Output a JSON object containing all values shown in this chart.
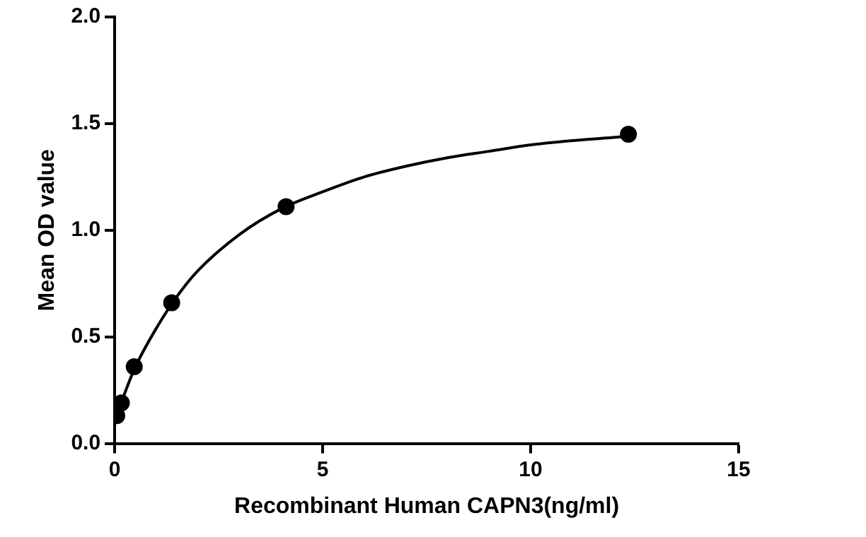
{
  "chart_data": {
    "type": "scatter",
    "xlabel": "Recombinant Human CAPN3(ng/ml)",
    "ylabel": "Mean OD value",
    "xlim": [
      0,
      15
    ],
    "xticks": [
      0,
      5,
      10,
      15
    ],
    "ylim": [
      0,
      2
    ],
    "yticks": [
      {
        "value": 0,
        "label": "0.0"
      },
      {
        "value": 0.5,
        "label": "0.5"
      },
      {
        "value": 1,
        "label": "1.0"
      },
      {
        "value": 1.5,
        "label": "1.5"
      },
      {
        "value": 2,
        "label": "2.0"
      }
    ],
    "grid": false,
    "legend": false,
    "marker": "circle",
    "series": [
      {
        "color": "#000000",
        "x": [
          0.05,
          0.16,
          0.47,
          1.37,
          4.12,
          12.35
        ],
        "values": [
          0.13,
          0.19,
          0.36,
          0.66,
          1.11,
          1.45
        ]
      },
      {
        "type": "line",
        "color": "#000000",
        "line_style": "solid",
        "marker": "none",
        "x": [
          0.05,
          0.25,
          0.5,
          1,
          1.5,
          2,
          3,
          4,
          5,
          6,
          7,
          8,
          9,
          10,
          11,
          12.35
        ],
        "values": [
          0.13,
          0.24,
          0.36,
          0.54,
          0.69,
          0.81,
          0.98,
          1.1,
          1.18,
          1.25,
          1.3,
          1.34,
          1.37,
          1.4,
          1.42,
          1.44
        ]
      }
    ]
  }
}
